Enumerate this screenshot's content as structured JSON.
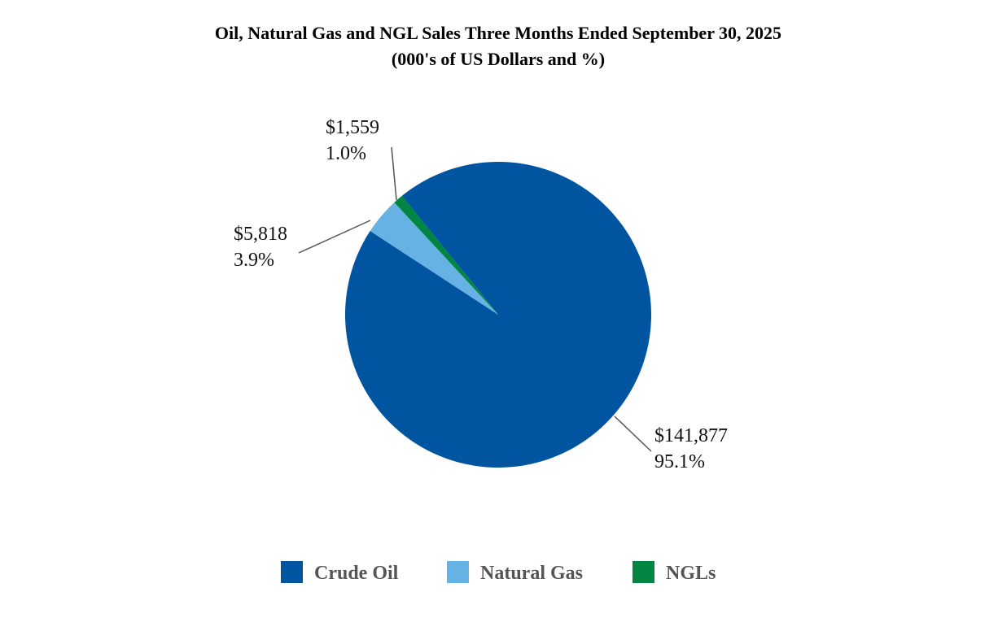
{
  "chart_data": {
    "type": "pie",
    "title": "Oil, Natural Gas and NGL Sales Three Months Ended September 30, 2025",
    "subtitle": "(000's of  US Dollars and %)",
    "categories": [
      "Crude Oil",
      "Natural Gas",
      "NGLs"
    ],
    "values": [
      141877,
      5818,
      1559
    ],
    "value_labels": [
      "$141,877",
      "$5,818",
      "$1,559"
    ],
    "percent_labels": [
      "95.1%",
      "3.9%",
      "1.0%"
    ],
    "colors": [
      "#0054a0",
      "#67b2e4",
      "#008542"
    ],
    "legend": "bottom"
  }
}
